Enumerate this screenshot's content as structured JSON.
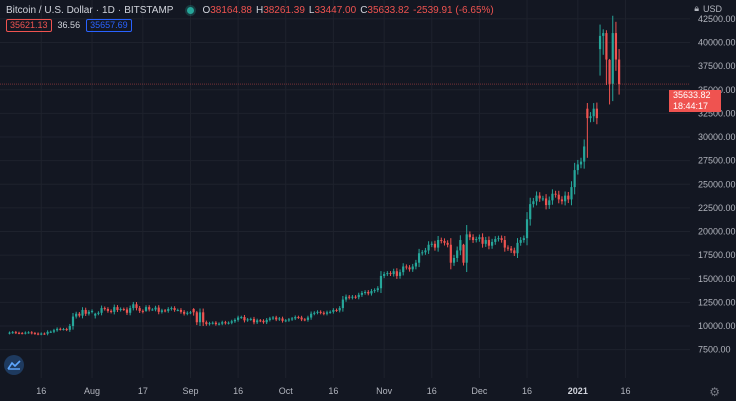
{
  "header": {
    "symbol_title": "Bitcoin / U.S. Dollar",
    "interval": "1D",
    "exchange": "BITSTAMP",
    "ohlc": [
      {
        "key": "O",
        "value": "38164.88"
      },
      {
        "key": "H",
        "value": "38261.39"
      },
      {
        "key": "L",
        "value": "33447.00"
      },
      {
        "key": "C",
        "value": "35633.82"
      },
      {
        "key": "",
        "value": "-2539.91 (-6.65%)"
      }
    ],
    "indicator": {
      "bid": "35621.13",
      "spread": "36.56",
      "ask": "35657.69"
    },
    "currency": "USD"
  },
  "colors": {
    "up": "#26a69a",
    "down": "#ef5350",
    "background": "#131722",
    "grid": "#1e222d",
    "axis_text": "#b2b5be"
  },
  "price_labels": {
    "last_price": "35633.82",
    "countdown": "18:44:17"
  },
  "chart_data": {
    "type": "candlestick",
    "title": "Bitcoin / U.S. Dollar · 1D · BITSTAMP",
    "xlabel": "",
    "ylabel": "",
    "ylim": [
      4500,
      44500
    ],
    "grid": true,
    "y_ticks": [
      "7500.00",
      "10000.00",
      "12500.00",
      "15000.00",
      "17500.00",
      "20000.00",
      "22500.00",
      "25000.00",
      "27500.00",
      "30000.00",
      "32500.00",
      "35000.00",
      "37500.00",
      "40000.00",
      "42500.00"
    ],
    "x_ticks": [
      {
        "label": "16",
        "date": "2020-07-16"
      },
      {
        "label": "Aug",
        "date": "2020-08-01"
      },
      {
        "label": "17",
        "date": "2020-08-17"
      },
      {
        "label": "Sep",
        "date": "2020-09-01"
      },
      {
        "label": "16",
        "date": "2020-09-16"
      },
      {
        "label": "Oct",
        "date": "2020-10-01"
      },
      {
        "label": "16",
        "date": "2020-10-16"
      },
      {
        "label": "Nov",
        "date": "2020-11-01"
      },
      {
        "label": "16",
        "date": "2020-11-16"
      },
      {
        "label": "Dec",
        "date": "2020-12-01"
      },
      {
        "label": "16",
        "date": "2020-12-16"
      },
      {
        "label": "2021",
        "date": "2021-01-01"
      },
      {
        "label": "16",
        "date": "2021-01-16"
      }
    ],
    "start_date": "2020-07-06",
    "closes": [
      9300,
      9350,
      9280,
      9250,
      9240,
      9300,
      9330,
      9250,
      9200,
      9150,
      9200,
      9180,
      9380,
      9400,
      9550,
      9700,
      9650,
      9680,
      9600,
      10000,
      11000,
      11300,
      11100,
      11700,
      11300,
      11500,
      11600,
      11100,
      11400,
      11900,
      11800,
      11600,
      11500,
      12000,
      11700,
      11800,
      11750,
      11400,
      11900,
      12300,
      11900,
      11600,
      11500,
      11700,
      11750,
      11750,
      11950,
      11500,
      11650,
      11600,
      11800,
      11900,
      11700,
      11700,
      11500,
      11300,
      11400,
      11450,
      11700,
      11850,
      11450,
      10400,
      10200,
      10300,
      10350,
      10200,
      10250,
      10400,
      10300,
      10350,
      10500,
      10650,
      10900,
      10950,
      10600,
      10700,
      10750,
      10400,
      10600,
      10550,
      10400,
      10650,
      10800,
      10900,
      10700,
      10800,
      10550,
      10600,
      10700,
      10800,
      10950,
      10900,
      10700,
      10650,
      10900,
      11300,
      11400,
      11500,
      11400,
      11300,
      11450,
      11500,
      11700,
      11650,
      11900,
      12800,
      13100,
      13000,
      13100,
      13050,
      13300,
      13500,
      13600,
      13450,
      13700,
      13800,
      14000,
      15300,
      15500,
      15600,
      15500,
      15800,
      15300,
      15700,
      16300,
      16200,
      16000,
      16300,
      16700,
      17700,
      17800,
      18000,
      18600,
      18700,
      18300,
      19100,
      19000,
      18800,
      18600,
      16700,
      17200,
      18000,
      19100,
      19300,
      19700,
      19400,
      19100,
      19200,
      19400,
      18700,
      19100,
      18500,
      18900,
      19200,
      19300,
      19100,
      18300,
      18200,
      18000,
      17700,
      18800,
      19100,
      19300,
      21300,
      22900,
      23200,
      23800,
      23500,
      23500,
      22800,
      23300,
      24000,
      23900,
      23400,
      23200,
      23800,
      23400,
      24700,
      26500,
      27100,
      27400,
      29000,
      29300,
      32200,
      33000,
      32000,
      34000,
      36800,
      39300,
      40700,
      41000,
      38200,
      35600
    ],
    "special": {
      "2020-08-02": {
        "open": 11100,
        "high": 11400,
        "low": 10800,
        "close": 11300
      },
      "2020-08-18": {
        "open": 11600,
        "high": 12200,
        "low": 11500,
        "close": 12000
      },
      "2020-09-02": {
        "open": 11800,
        "high": 11900,
        "low": 11100,
        "close": 11450
      },
      "2020-09-03": {
        "open": 11450,
        "high": 11600,
        "low": 10100,
        "close": 10400
      },
      "2020-11-26": {
        "open": 18600,
        "high": 18700,
        "low": 16400,
        "close": 16700
      },
      "2021-01-04": {
        "open": 33000,
        "high": 33600,
        "low": 27800,
        "close": 32000
      },
      "2021-01-08": {
        "open": 39300,
        "high": 41900,
        "low": 36500,
        "close": 40700
      },
      "2021-01-09": {
        "open": 40700,
        "high": 41400,
        "low": 38700,
        "close": 41000
      },
      "2021-01-10": {
        "open": 41000,
        "high": 41300,
        "low": 35500,
        "close": 38200
      },
      "2021-01-11": {
        "open": 38164.88,
        "high": 38261.39,
        "low": 33447.0,
        "close": 35633.82
      }
    }
  }
}
